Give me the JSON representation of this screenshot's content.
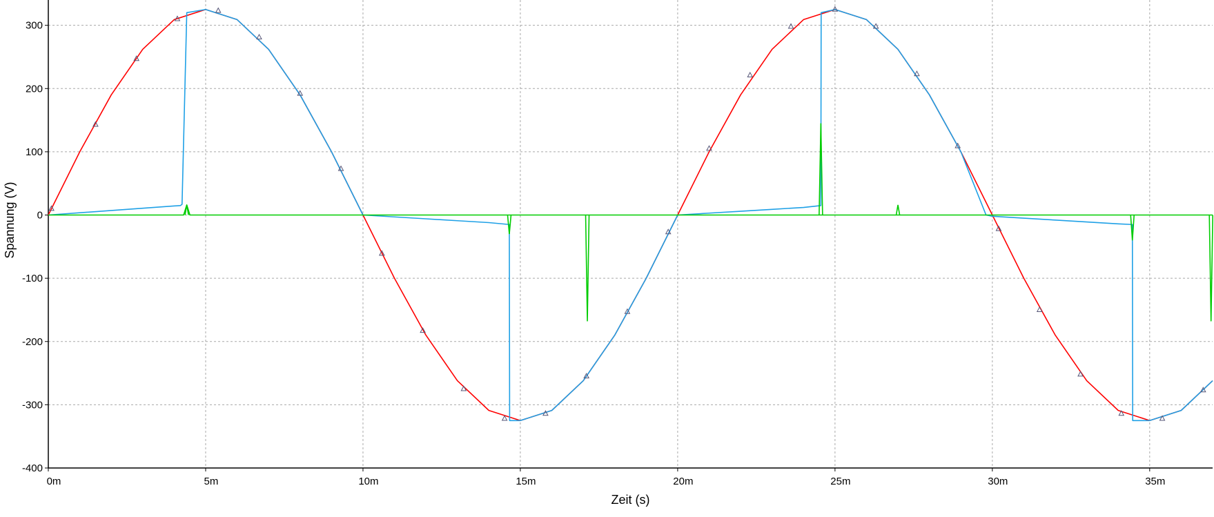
{
  "chart_data": {
    "type": "line",
    "title": "",
    "xlabel": "Zeit (s)",
    "ylabel": "Spannung (V)",
    "xlim": [
      0,
      0.037
    ],
    "ylim": [
      -400,
      340
    ],
    "grid": true,
    "x_ticks": [
      {
        "value": 0.0,
        "label": "0m"
      },
      {
        "value": 0.005,
        "label": "5m"
      },
      {
        "value": 0.01,
        "label": "10m"
      },
      {
        "value": 0.015,
        "label": "15m"
      },
      {
        "value": 0.02,
        "label": "20m"
      },
      {
        "value": 0.025,
        "label": "25m"
      },
      {
        "value": 0.03,
        "label": "30m"
      },
      {
        "value": 0.035,
        "label": "35m"
      }
    ],
    "y_ticks": [
      {
        "value": 300,
        "label": "300"
      },
      {
        "value": 200,
        "label": "200"
      },
      {
        "value": 100,
        "label": "100"
      },
      {
        "value": 0,
        "label": "0"
      },
      {
        "value": -100,
        "label": "-100"
      },
      {
        "value": -200,
        "label": "-200"
      },
      {
        "value": -300,
        "label": "-300"
      },
      {
        "value": -400,
        "label": "-400"
      }
    ],
    "series": [
      {
        "color": "#ff0000",
        "marker": "triangle",
        "x": [
          0,
          0.001,
          0.002,
          0.003,
          0.004,
          0.005,
          0.006,
          0.007,
          0.008,
          0.009,
          0.01,
          0.011,
          0.012,
          0.013,
          0.014,
          0.015,
          0.016,
          0.017,
          0.018,
          0.019,
          0.02,
          0.021,
          0.022,
          0.023,
          0.024,
          0.025,
          0.026,
          0.027,
          0.028,
          0.029,
          0.03,
          0.031,
          0.032,
          0.033,
          0.034,
          0.035,
          0.036,
          0.037
        ],
        "y": [
          0,
          100,
          190,
          262,
          309,
          325,
          309,
          262,
          190,
          100,
          0,
          -100,
          -190,
          -262,
          -309,
          -325,
          -309,
          -262,
          -190,
          -100,
          0,
          100,
          190,
          262,
          309,
          325,
          309,
          262,
          190,
          100,
          0,
          -100,
          -190,
          -262,
          -309,
          -325,
          -309,
          -262
        ],
        "marker_x": [
          0.0001,
          0.0015,
          0.0028,
          0.0041,
          0.0054,
          0.0067,
          0.008,
          0.0093,
          0.0106,
          0.0119,
          0.0132,
          0.0145,
          0.0158,
          0.0171,
          0.0184,
          0.0197,
          0.021,
          0.0223,
          0.0236,
          0.025,
          0.0263,
          0.0276,
          0.0289,
          0.0302,
          0.0315,
          0.0328,
          0.0341,
          0.0354,
          0.0367
        ],
        "marker_y": [
          10,
          143,
          247,
          310,
          323,
          281,
          192,
          73,
          -61,
          -183,
          -275,
          -322,
          -314,
          -255,
          -153,
          -27,
          105,
          221,
          298,
          325,
          298,
          223,
          109,
          -22,
          -150,
          -252,
          -314,
          -322,
          -277
        ]
      },
      {
        "color": "#1ea0e6",
        "x": [
          0,
          0.0042,
          0.00425,
          0.0044,
          0.005,
          0.006,
          0.007,
          0.008,
          0.009,
          0.01,
          0.011,
          0.012,
          0.013,
          0.014,
          0.01465,
          0.01466,
          0.015,
          0.016,
          0.017,
          0.018,
          0.019,
          0.02,
          0.021,
          0.022,
          0.023,
          0.024,
          0.02455,
          0.02456,
          0.025,
          0.026,
          0.027,
          0.028,
          0.029,
          0.0298,
          0.03,
          0.031,
          0.032,
          0.033,
          0.034,
          0.03445,
          0.03446,
          0.035,
          0.036,
          0.037
        ],
        "y": [
          0,
          15,
          17,
          320,
          325,
          309,
          262,
          190,
          100,
          0,
          -3,
          -6,
          -9,
          -12,
          -15,
          -325,
          -325,
          -309,
          -262,
          -190,
          -100,
          0,
          3,
          6,
          9,
          12,
          15,
          320,
          325,
          309,
          262,
          190,
          100,
          0,
          -2,
          -5,
          -8,
          -11,
          -14,
          -15,
          -325,
          -325,
          -309,
          -262
        ]
      },
      {
        "color": "#00cc00",
        "x": [
          0,
          0.0043,
          0.0044,
          0.0045,
          0.037
        ],
        "y": [
          0,
          0,
          16,
          0,
          0
        ],
        "spikes": [
          {
            "x": 0.0044,
            "y": 16
          },
          {
            "x": 0.01465,
            "y": -30
          },
          {
            "x": 0.01713,
            "y": -168
          },
          {
            "x": 0.02455,
            "y": 145
          },
          {
            "x": 0.027,
            "y": 16
          },
          {
            "x": 0.03445,
            "y": -40
          },
          {
            "x": 0.03695,
            "y": -168
          }
        ]
      }
    ]
  }
}
